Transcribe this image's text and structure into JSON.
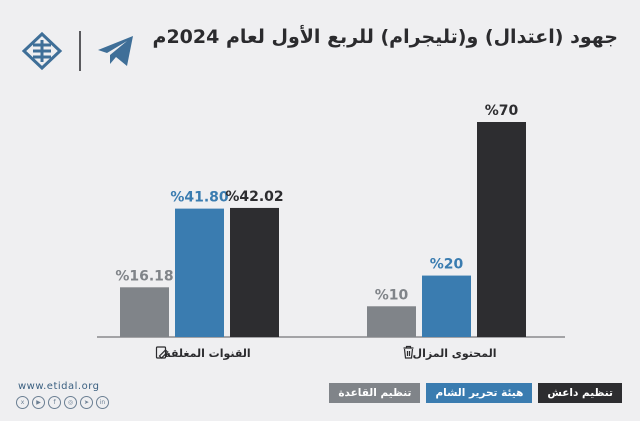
{
  "title": "جهود (اعتدال) و(تليجرام) للربع الأول لعام 2024م",
  "website": "www.etidal.org",
  "socials": [
    "x-icon",
    "youtube-icon",
    "facebook-icon",
    "instagram-icon",
    "telegram-icon",
    "linkedin-icon"
  ],
  "colors": {
    "isis": "#2d2d30",
    "hts": "#3a7cb0",
    "alqaeda": "#808489",
    "background": "#efeff1"
  },
  "legend": [
    {
      "label": "تنظيم داعش",
      "color": "#2d2d30"
    },
    {
      "label": "هيئة تحرير الشام",
      "color": "#3a7cb0"
    },
    {
      "label": "تنظيم القاعدة",
      "color": "#808489"
    }
  ],
  "chart_data": {
    "type": "bar",
    "categories": [
      "القنوات المغلقة",
      "المحتوى المزال"
    ],
    "category_icons": [
      "edit-icon",
      "trash-icon"
    ],
    "series": [
      {
        "name": "تنظيم القاعدة",
        "values": [
          16.18,
          10
        ],
        "labels": [
          "%16.18",
          "%10"
        ]
      },
      {
        "name": "هيئة تحرير الشام",
        "values": [
          41.8,
          20
        ],
        "labels": [
          "%41.80",
          "%20"
        ]
      },
      {
        "name": "تنظيم داعش",
        "values": [
          42.02,
          70
        ],
        "labels": [
          "%42.02",
          "%70"
        ]
      }
    ],
    "ylim": [
      0,
      70
    ],
    "grid": false,
    "legend_position": "bottom-right"
  }
}
